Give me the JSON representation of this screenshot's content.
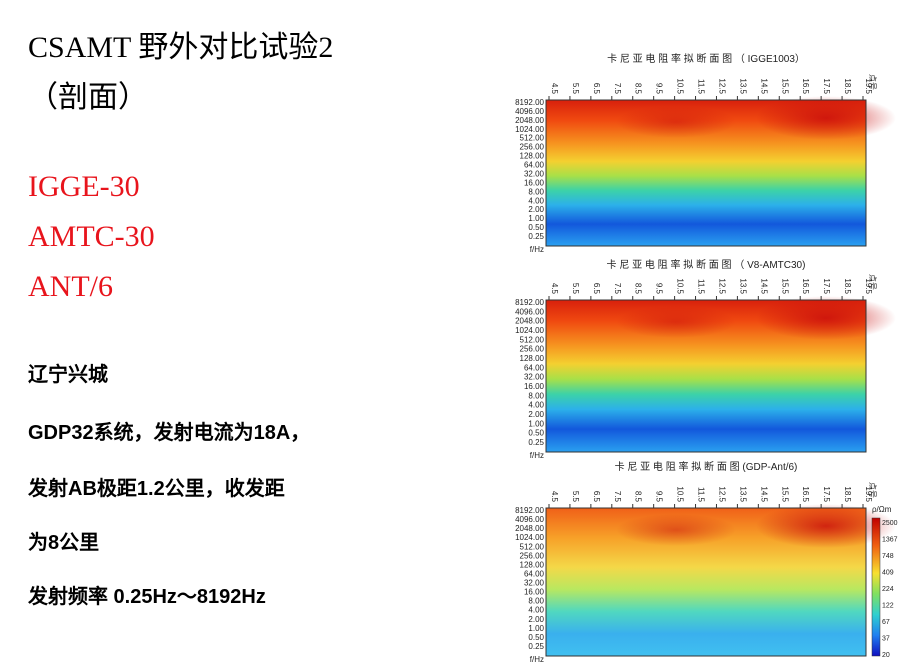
{
  "title": [
    "CSAMT 野外对比试验2",
    "（剖面）"
  ],
  "instruments": [
    "IGGE-30",
    "AMTC-30",
    "ANT/6"
  ],
  "location": "辽宁兴城",
  "notes": [
    "GDP32系统，发射电流为18A，",
    "发射AB极距1.2公里，收发距",
    "为8公里",
    "发射频率 0.25Hz～8192Hz"
  ],
  "sections": [
    {
      "title": "卡 尼 亚 电 阻 率 拟 断 面 图 （ IGGE1003）"
    },
    {
      "title": "卡 尼 亚 电 阻 率 拟 断 面 图 （ V8-AMTC30)"
    },
    {
      "title": "卡 尼 亚 电 阻 率 拟 断 面 图 (GDP-Ant/6)"
    }
  ],
  "x_labels": [
    "4.5",
    "5.5",
    "6.5",
    "7.5",
    "8.5",
    "9.5",
    "10.5",
    "11.5",
    "12.5",
    "13.5",
    "14.5",
    "15.5",
    "16.5",
    "17.5",
    "18.5",
    "19.5"
  ],
  "x_unit": "点号",
  "y_labels": [
    "8192.00",
    "4096.00",
    "2048.00",
    "1024.00",
    "512.00",
    "256.00",
    "128.00",
    "64.00",
    "32.00",
    "16.00",
    "8.00",
    "4.00",
    "2.00",
    "1.00",
    "0.50",
    "0.25"
  ],
  "y_unit": "f/Hz",
  "colorbar": {
    "unit": "ρ/Ωm",
    "labels": [
      "2500",
      "1367",
      "748",
      "409",
      "224",
      "122",
      "67",
      "37",
      "20"
    ]
  }
}
